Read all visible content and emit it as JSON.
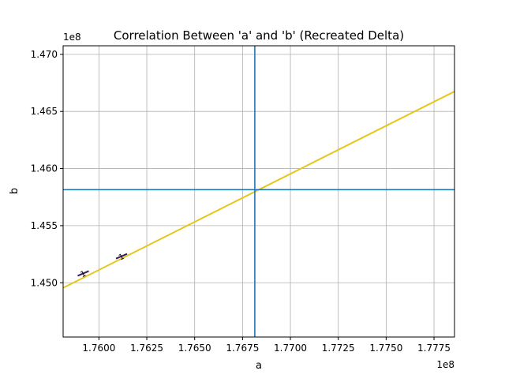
{
  "chart_data": {
    "type": "line",
    "title": "Correlation Between 'a' and 'b' (Recreated Delta)",
    "xlabel": "a",
    "ylabel": "b",
    "x_offset_label": "1e8",
    "y_offset_label": "1e8",
    "xlim": [
      1.75813,
      1.77857
    ],
    "ylim": [
      1.44525,
      1.47075
    ],
    "x_ticks": [
      {
        "value": 1.76,
        "label": "1.7600"
      },
      {
        "value": 1.7625,
        "label": "1.7625"
      },
      {
        "value": 1.765,
        "label": "1.7650"
      },
      {
        "value": 1.7675,
        "label": "1.7675"
      },
      {
        "value": 1.77,
        "label": "1.7700"
      },
      {
        "value": 1.7725,
        "label": "1.7725"
      },
      {
        "value": 1.775,
        "label": "1.7750"
      },
      {
        "value": 1.7775,
        "label": "1.7775"
      }
    ],
    "y_ticks": [
      {
        "value": 1.45,
        "label": "1.450"
      },
      {
        "value": 1.455,
        "label": "1.455"
      },
      {
        "value": 1.46,
        "label": "1.460"
      },
      {
        "value": 1.465,
        "label": "1.465"
      },
      {
        "value": 1.47,
        "label": "1.470"
      }
    ],
    "grid": true,
    "series": [
      {
        "x": [
          1.75813,
          1.77857
        ],
        "y": [
          1.44955,
          1.46675
        ],
        "color": "#e6c619"
      }
    ],
    "reference_lines": {
      "vertical_x": 1.76814,
      "horizontal_y": 1.45815,
      "color": "#1f77b4"
    },
    "contour_labels": [
      {
        "x": 1.75918,
        "y": 1.45075,
        "text": "1"
      },
      {
        "x": 1.76118,
        "y": 1.45225,
        "text": "1"
      }
    ]
  }
}
